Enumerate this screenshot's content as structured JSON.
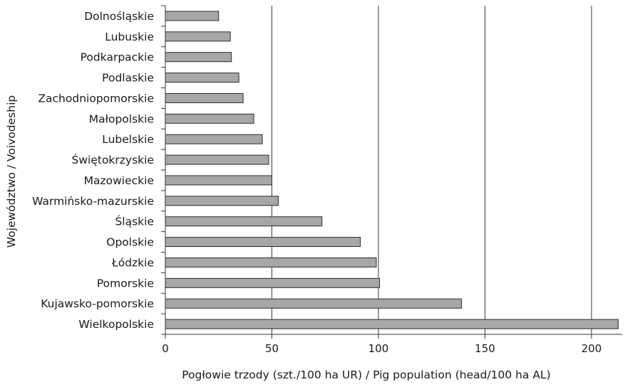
{
  "chart_data": {
    "type": "bar",
    "orientation": "horizontal",
    "categories": [
      "Dolnośląskie",
      "Lubuskie",
      "Podkarpackie",
      "Podlaskie",
      "Zachodniopomorskie",
      "Małopolskie",
      "Lubelskie",
      "Świętokrzyskie",
      "Mazowieckie",
      "Warmińsko-mazurskie",
      "Śląskie",
      "Opolskie",
      "Łódzkie",
      "Pomorskie",
      "Kujawsko-pomorskie",
      "Wielkopolskie"
    ],
    "values": [
      25,
      30.5,
      31,
      34.5,
      36.5,
      41.5,
      45.5,
      48.5,
      50,
      53,
      73.5,
      91.5,
      99,
      100.5,
      139,
      212.5
    ],
    "xlabel": "Pogłowie trzody (szt./100 ha UR) / Pig population (head/100 ha AL)",
    "ylabel": "Województwo / Voivodeship",
    "xlim": [
      0,
      215
    ],
    "xticks": [
      0,
      50,
      100,
      150,
      200
    ],
    "grid": "vertical",
    "bar_color": "#a7a7a9"
  }
}
